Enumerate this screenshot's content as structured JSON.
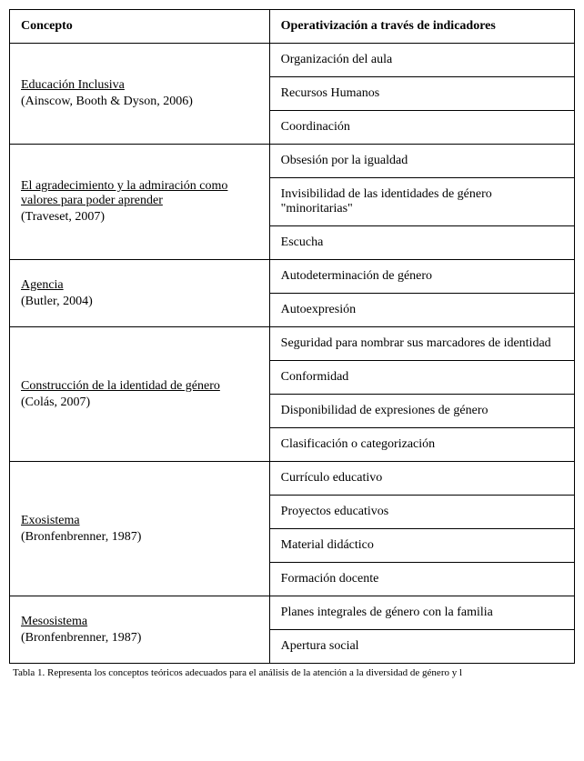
{
  "headers": {
    "concept": "Concepto",
    "operativization": "Operativización a través de indicadores"
  },
  "rows": [
    {
      "title": "Educación Inclusiva",
      "ref": "(Ainscow, Booth & Dyson, 2006)",
      "indicators": [
        "Organización del aula",
        "Recursos Humanos",
        "Coordinación"
      ]
    },
    {
      "title": "El agradecimiento y la admiración como valores para poder aprender",
      "ref": "(Traveset, 2007)",
      "indicators": [
        "Obsesión por la igualdad",
        "Invisibilidad de las identidades de género \"minoritarias\"",
        "Escucha"
      ]
    },
    {
      "title": "Agencia",
      "ref": "(Butler, 2004)",
      "indicators": [
        "Autodeterminación de género",
        "Autoexpresión"
      ]
    },
    {
      "title": "Construcción de la identidad de género",
      "ref": "(Colás, 2007)",
      "indicators": [
        "Seguridad para nombrar sus marcadores de identidad",
        "Conformidad",
        "Disponibilidad de expresiones de género",
        "Clasificación o categorización"
      ]
    },
    {
      "title": "Exosistema",
      "ref": "(Bronfenbrenner, 1987)",
      "indicators": [
        "Currículo educativo",
        "Proyectos educativos",
        "Material didáctico",
        "Formación docente"
      ]
    },
    {
      "title": "Mesosistema",
      "ref": "(Bronfenbrenner, 1987)",
      "indicators": [
        "Planes integrales de género con la familia",
        "Apertura social"
      ]
    }
  ],
  "caption": "Tabla 1. Representa los conceptos teóricos adecuados para el análisis de la atención a la diversidad de género y l",
  "style": {
    "font_family": "Times New Roman",
    "font_size_pt": 14,
    "caption_font_size_pt": 11,
    "border_color": "#000000",
    "background_color": "#ffffff",
    "text_color": "#000000",
    "col_widths_pct": [
      46,
      54
    ]
  }
}
